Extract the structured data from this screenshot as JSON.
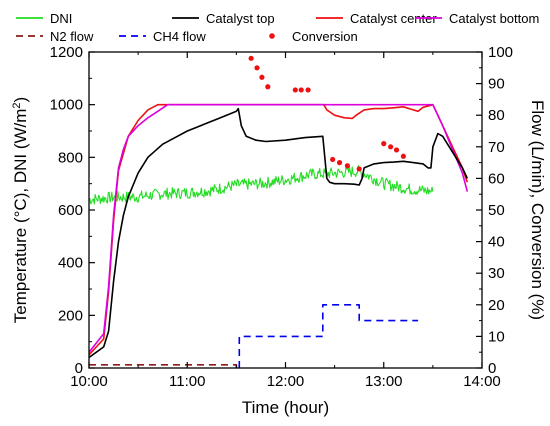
{
  "chart_data": {
    "type": "line",
    "xlabel": "Time (hour)",
    "ylabel_left": "Temperature (°C), DNI (W/m²)",
    "ylabel_left_parts": {
      "main": "Temperature (°C), DNI (W/m",
      "sup": "2",
      "end": ")"
    },
    "ylabel_right": "Flow (L/min), Conversion (%)",
    "x_ticks": [
      "10:00",
      "11:00",
      "12:00",
      "13:00",
      "14:00"
    ],
    "x_range_hours": [
      10.0,
      14.0
    ],
    "y_left_range": [
      0,
      1200
    ],
    "y_left_ticks": [
      "0",
      "200",
      "400",
      "600",
      "800",
      "1000",
      "1200"
    ],
    "y_right_range": [
      0,
      100
    ],
    "y_right_ticks": [
      "0",
      "10",
      "20",
      "30",
      "40",
      "50",
      "60",
      "70",
      "80",
      "90",
      "100"
    ],
    "grid": false,
    "legend_placement": "top",
    "legend": [
      {
        "name": "DNI",
        "color": "#22dd22",
        "style": "solid"
      },
      {
        "name": "Catalyst top",
        "color": "#000000",
        "style": "solid"
      },
      {
        "name": "Catalyst center",
        "color": "#ee1111",
        "style": "solid"
      },
      {
        "name": "Catalyst bottom",
        "color": "#dd00dd",
        "style": "solid"
      },
      {
        "name": "N2 flow",
        "color": "#8b1a1a",
        "style": "dashed"
      },
      {
        "name": "CH4 flow",
        "color": "#0000ee",
        "style": "dashed"
      },
      {
        "name": "Conversion",
        "color": "#ee1111",
        "style": "dots"
      }
    ],
    "series": [
      {
        "name": "Catalyst top",
        "axis": "left",
        "color": "#000000",
        "x": [
          10.0,
          10.15,
          10.2,
          10.25,
          10.3,
          10.35,
          10.4,
          10.5,
          10.6,
          10.75,
          10.9,
          11.0,
          11.1,
          11.2,
          11.3,
          11.4,
          11.5,
          11.52,
          11.55,
          11.6,
          11.7,
          11.8,
          12.0,
          12.2,
          12.38,
          12.39,
          12.42,
          12.45,
          12.5,
          12.6,
          12.7,
          12.75,
          12.78,
          12.8,
          12.9,
          13.0,
          13.1,
          13.2,
          13.3,
          13.4,
          13.45,
          13.48,
          13.5,
          13.55,
          13.6,
          13.7,
          13.8,
          13.85
        ],
        "values": [
          40,
          80,
          140,
          330,
          480,
          580,
          650,
          740,
          800,
          850,
          880,
          900,
          915,
          930,
          945,
          960,
          975,
          985,
          920,
          880,
          865,
          860,
          865,
          875,
          880,
          840,
          720,
          705,
          700,
          700,
          698,
          695,
          720,
          760,
          775,
          780,
          782,
          785,
          780,
          775,
          760,
          760,
          840,
          890,
          880,
          820,
          760,
          720
        ]
      },
      {
        "name": "Catalyst center",
        "axis": "left",
        "color": "#ee1111",
        "x": [
          10.0,
          10.15,
          10.2,
          10.25,
          10.3,
          10.4,
          10.5,
          10.6,
          10.7,
          10.75,
          11.0,
          11.5,
          12.0,
          12.39,
          12.42,
          12.5,
          12.6,
          12.68,
          12.72,
          12.8,
          12.9,
          13.0,
          13.1,
          13.2,
          13.3,
          13.35,
          13.4,
          13.5,
          13.6,
          13.7,
          13.8,
          13.85
        ],
        "values": [
          50,
          110,
          290,
          560,
          750,
          880,
          940,
          980,
          1000,
          1000,
          1000,
          1000,
          1000,
          1000,
          980,
          960,
          950,
          948,
          960,
          980,
          985,
          985,
          988,
          992,
          980,
          975,
          990,
          1000,
          920,
          840,
          760,
          705
        ]
      },
      {
        "name": "Catalyst bottom",
        "axis": "left",
        "color": "#dd00dd",
        "x": [
          10.0,
          10.15,
          10.2,
          10.25,
          10.3,
          10.35,
          10.4,
          10.5,
          10.6,
          10.7,
          10.8,
          11.0,
          11.5,
          12.0,
          12.5,
          13.0,
          13.5,
          13.6,
          13.7,
          13.8,
          13.85
        ],
        "values": [
          60,
          130,
          310,
          580,
          760,
          830,
          880,
          920,
          950,
          975,
          1000,
          1000,
          1000,
          1000,
          1000,
          1000,
          1000,
          920,
          830,
          740,
          670
        ]
      },
      {
        "name": "DNI",
        "axis": "left",
        "color": "#22dd22",
        "noise": 22,
        "x": [
          10.0,
          10.25,
          10.5,
          10.75,
          11.0,
          11.25,
          11.5,
          11.75,
          12.0,
          12.25,
          12.5,
          12.75,
          13.0,
          13.25,
          13.5
        ],
        "values": [
          640,
          648,
          650,
          662,
          665,
          675,
          695,
          700,
          715,
          735,
          740,
          748,
          700,
          680,
          670
        ]
      },
      {
        "name": "N2 flow",
        "axis": "right",
        "color": "#8b1a1a",
        "dashed": true,
        "x": [
          10.0,
          11.5,
          11.5,
          11.53
        ],
        "values": [
          1,
          1,
          0,
          0
        ]
      },
      {
        "name": "CH4 flow",
        "axis": "right",
        "color": "#0000ee",
        "dashed": true,
        "x": [
          11.53,
          11.53,
          12.38,
          12.38,
          12.75,
          12.75,
          13.35
        ],
        "values": [
          0,
          10,
          10,
          20,
          20,
          15,
          15
        ]
      },
      {
        "name": "Conversion",
        "axis": "right",
        "color": "#ee1111",
        "markers": "dots",
        "x": [
          11.65,
          11.71,
          11.76,
          11.82,
          12.1,
          12.16,
          12.23,
          12.48,
          12.55,
          12.63,
          12.75,
          13.0,
          13.07,
          13.13,
          13.2
        ],
        "values": [
          98,
          95,
          92,
          89,
          88,
          88,
          88,
          66,
          65,
          64,
          63,
          71,
          70,
          69,
          67
        ]
      }
    ]
  }
}
